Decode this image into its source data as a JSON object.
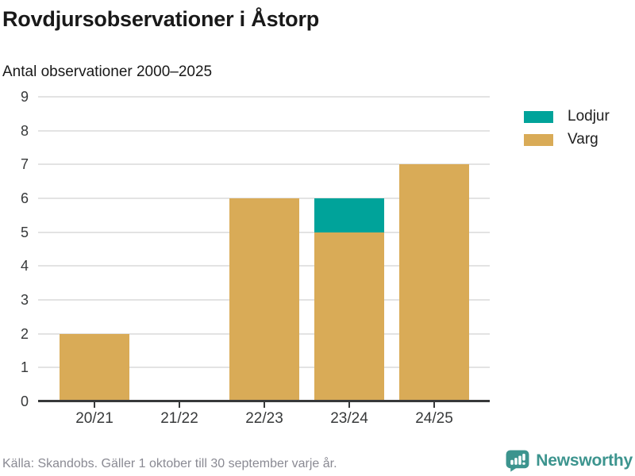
{
  "header": {
    "title": "Rovdjursobservationer i Åstorp",
    "subtitle": "Antal observationer 2000–2025"
  },
  "chart_data": {
    "type": "bar",
    "stacked": true,
    "title": "Rovdjursobservationer i Åstorp",
    "subtitle": "Antal observationer 2000–2025",
    "categories": [
      "20/21",
      "21/22",
      "22/23",
      "23/24",
      "24/25"
    ],
    "series": [
      {
        "name": "Lodjur",
        "color": "#00a39a",
        "values": [
          0,
          0,
          0,
          1,
          0
        ]
      },
      {
        "name": "Varg",
        "color": "#d9ab57",
        "values": [
          2,
          0,
          6,
          5,
          7
        ]
      }
    ],
    "totals": [
      2,
      0,
      6,
      6,
      7
    ],
    "xlabel": "",
    "ylabel": "",
    "ylim": [
      0,
      9
    ],
    "yticks": [
      0,
      1,
      2,
      3,
      4,
      5,
      6,
      7,
      8,
      9
    ],
    "grid": true,
    "legend_position": "top-right"
  },
  "colors": {
    "lodjur": "#00a39a",
    "varg": "#d9ab57",
    "grid": "#e3e3e3",
    "axis": "#37393a",
    "brand_teal": "#3c948e"
  },
  "footer": {
    "source": "Källa: Skandobs. Gäller 1 oktober till 30 september varje år.",
    "brand": "Newsworthy"
  }
}
